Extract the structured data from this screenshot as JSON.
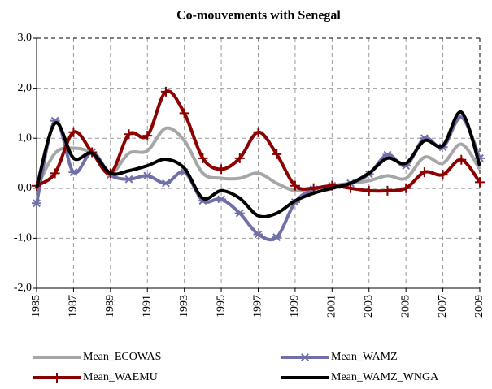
{
  "chart_data": {
    "type": "line",
    "title": "Co-mouvements with Senegal",
    "x": [
      1985,
      1986,
      1987,
      1988,
      1989,
      1990,
      1991,
      1992,
      1993,
      1994,
      1995,
      1996,
      1997,
      1998,
      1999,
      2000,
      2001,
      2002,
      2003,
      2004,
      2005,
      2006,
      2007,
      2008,
      2009
    ],
    "xlim": [
      1985,
      2009
    ],
    "xticks": [
      1985,
      1987,
      1989,
      1991,
      1993,
      1995,
      1997,
      1999,
      2001,
      2003,
      2005,
      2007,
      2009
    ],
    "ylim": [
      -2,
      3
    ],
    "yticks": [
      {
        "value": -2,
        "label": "-2,0"
      },
      {
        "value": -1,
        "label": "-1,0"
      },
      {
        "value": 0,
        "label": "0,0"
      },
      {
        "value": 1,
        "label": "1,0"
      },
      {
        "value": 2,
        "label": "2,0"
      },
      {
        "value": 3,
        "label": "3,0"
      }
    ],
    "grid": true,
    "smooth": true,
    "series": [
      {
        "name": "Mean_ECOWAS",
        "color": "#a6a6a6",
        "marker": null,
        "values": [
          0.0,
          0.7,
          0.8,
          0.7,
          0.3,
          0.7,
          0.75,
          1.2,
          0.95,
          0.3,
          0.2,
          0.2,
          0.3,
          0.1,
          -0.05,
          0.0,
          0.05,
          0.1,
          0.15,
          0.25,
          0.2,
          0.62,
          0.5,
          0.88,
          0.38
        ]
      },
      {
        "name": "Mean_WAMZ",
        "color": "#7070a8",
        "marker": "star",
        "values": [
          -0.3,
          1.35,
          0.32,
          0.72,
          0.27,
          0.18,
          0.25,
          0.1,
          0.32,
          -0.25,
          -0.22,
          -0.5,
          -0.92,
          -0.98,
          -0.28,
          -0.02,
          0.05,
          0.1,
          0.28,
          0.67,
          0.45,
          1.0,
          0.82,
          1.42,
          0.6
        ]
      },
      {
        "name": "Mean_WAEMU",
        "color": "#8b0000",
        "marker": "plus",
        "values": [
          0.05,
          0.3,
          1.12,
          0.72,
          0.3,
          1.08,
          1.05,
          1.93,
          1.5,
          0.6,
          0.38,
          0.6,
          1.12,
          0.68,
          0.05,
          0.0,
          0.05,
          0.0,
          -0.05,
          -0.05,
          0.0,
          0.32,
          0.27,
          0.57,
          0.12
        ]
      },
      {
        "name": "Mean_WAMZ_WNGA",
        "color": "#000000",
        "marker": null,
        "values": [
          0.0,
          1.3,
          0.6,
          0.7,
          0.3,
          0.35,
          0.45,
          0.58,
          0.4,
          -0.2,
          -0.05,
          -0.2,
          -0.55,
          -0.5,
          -0.25,
          -0.1,
          0.0,
          0.1,
          0.3,
          0.6,
          0.5,
          0.95,
          0.85,
          1.52,
          0.45
        ]
      }
    ]
  }
}
